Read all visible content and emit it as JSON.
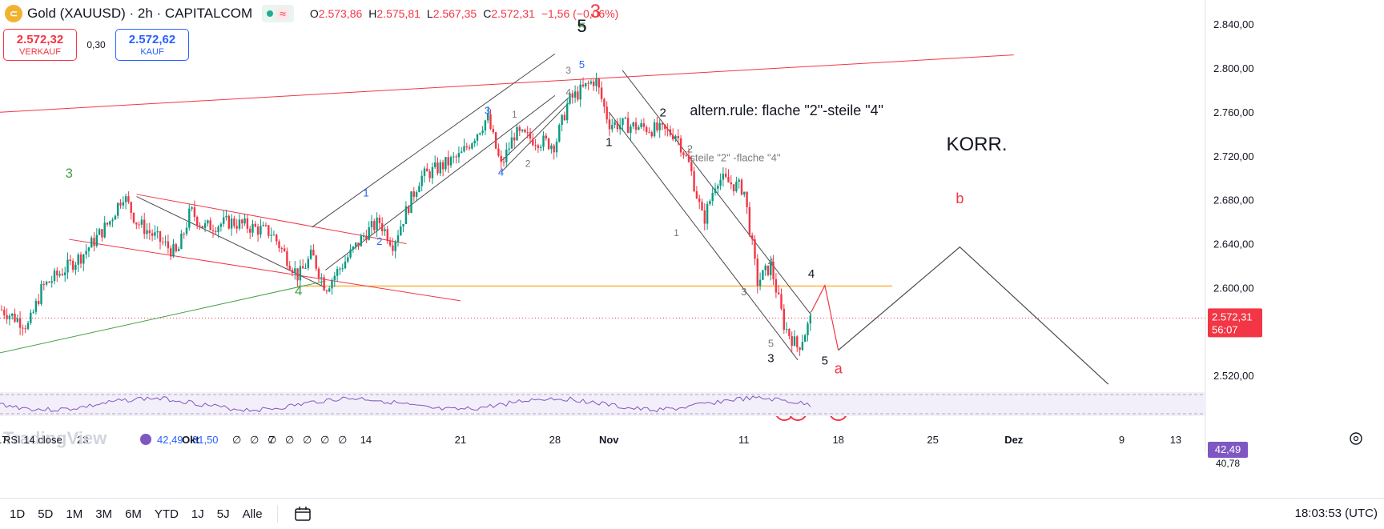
{
  "header": {
    "symbol_title": "Gold (XAUUSD) · 2h · CAPITALCOM",
    "ohlc": [
      {
        "k": "O",
        "v": "2.573,86"
      },
      {
        "k": "H",
        "v": "2.575,81"
      },
      {
        "k": "L",
        "v": "2.567,35"
      },
      {
        "k": "C",
        "v": "2.572,31"
      },
      {
        "k": "",
        "v": "−1,56 (−0,06%)"
      }
    ]
  },
  "trade": {
    "sell_price": "2.572,32",
    "sell_label": "VERKAUF",
    "spread": "0,30",
    "buy_price": "2.572,62",
    "buy_label": "KAUF"
  },
  "rsi": {
    "label": "RSI",
    "obscured_text": "14 close",
    "value1": "42,49",
    "value2": "31,50",
    "placeholders": [
      "∅",
      "∅",
      "∅",
      "∅",
      "∅",
      "∅",
      "∅"
    ],
    "axis_value": "42,49",
    "axis_bottom": "40,78"
  },
  "watermark": "TradingView",
  "price_tag": {
    "price": "2.572,31",
    "countdown": "56:07"
  },
  "bottom": {
    "timeframes": [
      "1D",
      "5D",
      "1M",
      "3M",
      "6M",
      "YTD",
      "1J",
      "5J",
      "Alle"
    ],
    "clock": "18:03:53 (UTC)"
  },
  "colors": {
    "up": "#089981",
    "down": "#f23645",
    "red": "#f23645",
    "green": "#43a047",
    "blue": "#2962ff",
    "orange": "#ffa726",
    "rsi": "#7e57c2",
    "purple": "#9c27b0"
  },
  "chart_data": {
    "type": "candlestick",
    "title": "Gold (XAUUSD) · 2h · CAPITALCOM",
    "y_axis": {
      "ticks": [
        "2.520,00",
        "2.560,00",
        "2.600,00",
        "2.640,00",
        "2.680,00",
        "2.720,00",
        "2.760,00",
        "2.800,00",
        "2.840,00"
      ],
      "tick_values": [
        2520,
        2560,
        2600,
        2640,
        2680,
        2720,
        2760,
        2800,
        2840
      ],
      "ylim": [
        2507,
        2862
      ],
      "scale": "linear"
    },
    "x_axis": {
      "labels": [
        "17",
        "23",
        "Okt",
        "7",
        "14",
        "21",
        "28",
        "Nov",
        "11",
        "18",
        "25",
        "Dez",
        "9",
        "13"
      ],
      "dates": [
        "2024-09-17",
        "2024-09-23",
        "2024-10-01",
        "2024-10-07",
        "2024-10-14",
        "2024-10-21",
        "2024-10-28",
        "2024-11-01",
        "2024-11-11",
        "2024-11-18",
        "2024-11-25",
        "2024-12-01",
        "2024-12-09",
        "2024-12-13"
      ],
      "bold": [
        "Okt",
        "Nov",
        "Dez"
      ]
    },
    "last_price": 2572.31,
    "price_path": [
      [
        "2024-09-17",
        2580
      ],
      [
        "2024-09-19",
        2565
      ],
      [
        "2024-09-20",
        2600
      ],
      [
        "2024-09-23",
        2630
      ],
      [
        "2024-09-25",
        2660
      ],
      [
        "2024-09-26",
        2685
      ],
      [
        "2024-09-27",
        2660
      ],
      [
        "2024-09-30",
        2630
      ],
      [
        "2024-10-01",
        2670
      ],
      [
        "2024-10-02",
        2655
      ],
      [
        "2024-10-04",
        2660
      ],
      [
        "2024-10-07",
        2650
      ],
      [
        "2024-10-09",
        2610
      ],
      [
        "2024-10-10",
        2630
      ],
      [
        "2024-10-11",
        2600
      ],
      [
        "2024-10-14",
        2650
      ],
      [
        "2024-10-15",
        2660
      ],
      [
        "2024-10-16",
        2640
      ],
      [
        "2024-10-18",
        2700
      ],
      [
        "2024-10-21",
        2720
      ],
      [
        "2024-10-23",
        2755
      ],
      [
        "2024-10-24",
        2710
      ],
      [
        "2024-10-25",
        2740
      ],
      [
        "2024-10-28",
        2730
      ],
      [
        "2024-10-29",
        2770
      ],
      [
        "2024-10-31",
        2790
      ],
      [
        "2024-11-01",
        2750
      ],
      [
        "2024-11-04",
        2745
      ],
      [
        "2024-11-06",
        2740
      ],
      [
        "2024-11-07",
        2710
      ],
      [
        "2024-11-08",
        2660
      ],
      [
        "2024-11-09",
        2700
      ],
      [
        "2024-11-11",
        2690
      ],
      [
        "2024-11-12",
        2605
      ],
      [
        "2024-11-13",
        2620
      ],
      [
        "2024-11-14",
        2565
      ],
      [
        "2024-11-15",
        2545
      ],
      [
        "2024-11-16",
        2572
      ]
    ],
    "horizontal_levels": [
      {
        "value": 2601.5,
        "color": "#ffa726",
        "from": "2024-10-09",
        "to": "2024-11-22"
      }
    ],
    "trendlines": [
      {
        "color": "#f23645",
        "points": [
          [
            "2024-09-10",
            2755
          ],
          [
            "2024-12-01",
            2812
          ]
        ]
      },
      {
        "color": "#43a047",
        "points": [
          [
            "2024-09-10",
            2522
          ],
          [
            "2024-10-11",
            2606
          ]
        ]
      },
      {
        "color": "#f23645",
        "points": [
          [
            "2024-09-27",
            2685
          ],
          [
            "2024-10-17",
            2640
          ]
        ]
      },
      {
        "color": "#f23645",
        "points": [
          [
            "2024-09-22",
            2644
          ],
          [
            "2024-10-21",
            2588
          ]
        ]
      },
      {
        "color": "#4a4a4a",
        "points": [
          [
            "2024-09-27",
            2683
          ],
          [
            "2024-10-11",
            2600
          ]
        ]
      },
      {
        "color": "#4a4a4a",
        "points": [
          [
            "2024-10-10",
            2655
          ],
          [
            "2024-10-28",
            2813
          ]
        ]
      },
      {
        "color": "#4a4a4a",
        "points": [
          [
            "2024-10-11",
            2616
          ],
          [
            "2024-10-28",
            2775
          ]
        ]
      },
      {
        "color": "#4a4a4a",
        "points": [
          [
            "2024-10-24",
            2715
          ],
          [
            "2024-10-29",
            2773
          ]
        ]
      },
      {
        "color": "#4a4a4a",
        "points": [
          [
            "2024-10-24",
            2705
          ],
          [
            "2024-10-29",
            2768
          ]
        ]
      },
      {
        "color": "#4a4a4a",
        "points": [
          [
            "2024-11-02",
            2798
          ],
          [
            "2024-11-16",
            2575
          ]
        ]
      },
      {
        "color": "#4a4a4a",
        "points": [
          [
            "2024-11-01",
            2760
          ],
          [
            "2024-11-15",
            2534
          ]
        ]
      }
    ],
    "projection": [
      {
        "color": "#f23645",
        "points": [
          [
            "2024-11-16",
            2578
          ],
          [
            "2024-11-17",
            2602
          ],
          [
            "2024-11-17",
            2602
          ],
          [
            "2024-11-18",
            2543
          ]
        ]
      },
      {
        "color": "#4a4a4a",
        "points": [
          [
            "2024-11-18",
            2543
          ],
          [
            "2024-11-27",
            2637
          ],
          [
            "2024-12-08",
            2512
          ]
        ]
      }
    ],
    "wave_labels": [
      {
        "text": "3",
        "date": "2024-09-22",
        "price": 2700,
        "color": "#43a047",
        "size": 17
      },
      {
        "text": "4",
        "date": "2024-10-09",
        "price": 2593,
        "color": "#43a047",
        "size": 17
      },
      {
        "text": "5",
        "date": "2024-10-30",
        "price": 2833,
        "color": "#43a047",
        "size": 17
      },
      {
        "text": "5",
        "date": "2024-10-30",
        "price": 2833,
        "color": "#131722",
        "size": 22
      },
      {
        "text": "3",
        "date": "2024-10-31",
        "price": 2846,
        "color": "#f23645",
        "size": 24
      },
      {
        "text": "1",
        "date": "2024-10-14",
        "price": 2683,
        "color": "#2962ff",
        "size": 13
      },
      {
        "text": "2",
        "date": "2024-10-15",
        "price": 2639,
        "color": "#2962ff",
        "size": 13
      },
      {
        "text": "3",
        "date": "2024-10-23",
        "price": 2758,
        "color": "#2962ff",
        "size": 13
      },
      {
        "text": "4",
        "date": "2024-10-24",
        "price": 2702,
        "color": "#2962ff",
        "size": 13
      },
      {
        "text": "5",
        "date": "2024-10-30",
        "price": 2800,
        "color": "#2962ff",
        "size": 13
      },
      {
        "text": "1",
        "date": "2024-10-25",
        "price": 2755,
        "color": "#7a7a7a",
        "size": 12
      },
      {
        "text": "2",
        "date": "2024-10-26",
        "price": 2710,
        "color": "#7a7a7a",
        "size": 12
      },
      {
        "text": "3",
        "date": "2024-10-29",
        "price": 2795,
        "color": "#7a7a7a",
        "size": 12
      },
      {
        "text": "4",
        "date": "2024-10-29",
        "price": 2775,
        "color": "#7a7a7a",
        "size": 12
      },
      {
        "text": "1",
        "date": "2024-11-01",
        "price": 2729,
        "color": "#131722",
        "size": 15
      },
      {
        "text": "2",
        "date": "2024-11-05",
        "price": 2756,
        "color": "#131722",
        "size": 15
      },
      {
        "text": "2",
        "date": "2024-11-07",
        "price": 2723,
        "color": "#7a7a7a",
        "size": 13
      },
      {
        "text": "1",
        "date": "2024-11-06",
        "price": 2647,
        "color": "#7a7a7a",
        "size": 12
      },
      {
        "text": "3",
        "date": "2024-11-11",
        "price": 2593,
        "color": "#7a7a7a",
        "size": 13
      },
      {
        "text": "4",
        "date": "2024-11-13",
        "price": 2620,
        "color": "#7a7a7a",
        "size": 13
      },
      {
        "text": "5",
        "date": "2024-11-13",
        "price": 2546,
        "color": "#7a7a7a",
        "size": 13
      },
      {
        "text": "3",
        "date": "2024-11-13",
        "price": 2532,
        "color": "#131722",
        "size": 15
      },
      {
        "text": "4",
        "date": "2024-11-16",
        "price": 2609,
        "color": "#131722",
        "size": 15
      },
      {
        "text": "5",
        "date": "2024-11-17",
        "price": 2530,
        "color": "#131722",
        "size": 15
      },
      {
        "text": "a",
        "date": "2024-11-18",
        "price": 2522,
        "color": "#f23645",
        "size": 18
      },
      {
        "text": "b",
        "date": "2024-11-27",
        "price": 2677,
        "color": "#f23645",
        "size": 18
      }
    ],
    "text_annotations": [
      {
        "text": "altern.rule: flache \"2\"-steile \"4\"",
        "date": "2024-11-07",
        "price": 2757,
        "color": "#131722",
        "size": 18
      },
      {
        "text": "steile \"2\" -flache \"4\"",
        "date": "2024-11-07",
        "price": 2715,
        "color": "#7a7a7a",
        "size": 13
      },
      {
        "text": "KORR.",
        "date": "2024-11-26",
        "price": 2725,
        "color": "#131722",
        "size": 24
      }
    ],
    "event_markers": [
      "2024-11-14",
      "2024-11-15",
      "2024-11-18"
    ],
    "rsi_range": [
      0,
      100
    ]
  }
}
